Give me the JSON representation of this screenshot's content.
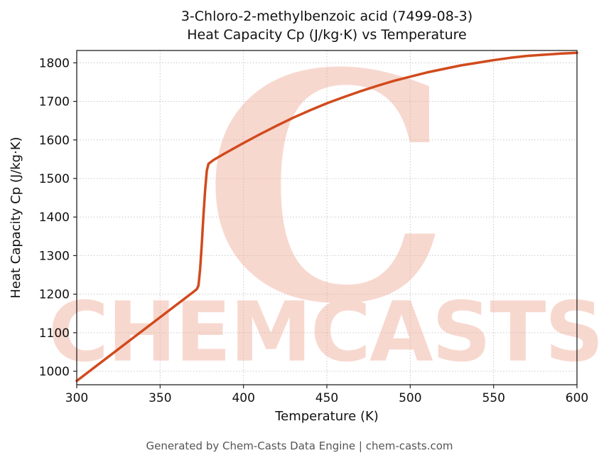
{
  "header": {
    "title_line1": "3-Chloro-2-methylbenzoic acid (7499-08-3)",
    "title_line2": "Heat Capacity Cp (J/kg·K) vs Temperature"
  },
  "footer": {
    "text": "Generated by Chem-Casts Data Engine | chem-casts.com"
  },
  "watermark": {
    "logo_text": "C",
    "brand_text": "CHEMCASTS",
    "color": "#efab97",
    "opacity": 0.45
  },
  "chart_data": {
    "type": "line",
    "title": "3-Chloro-2-methylbenzoic acid (7499-08-3) Heat Capacity Cp (J/kg·K) vs Temperature",
    "xlabel": "Temperature (K)",
    "ylabel": "Heat Capacity Cp (J/kg·K)",
    "xlim": [
      300,
      600
    ],
    "ylim": [
      965,
      1832
    ],
    "xticks": [
      300,
      350,
      400,
      450,
      500,
      550,
      600
    ],
    "yticks": [
      1000,
      1100,
      1200,
      1300,
      1400,
      1500,
      1600,
      1700,
      1800
    ],
    "grid": true,
    "grid_color": "#c8c8c8",
    "line_color": "#d14a1d",
    "line_width": 3.5,
    "series": [
      {
        "name": "Heat Capacity Cp",
        "x": [
          300,
          310,
          320,
          330,
          340,
          350,
          360,
          370,
          372,
          373,
          374,
          375,
          376,
          377,
          378,
          379,
          382,
          386,
          390,
          395,
          400,
          410,
          420,
          430,
          440,
          450,
          460,
          470,
          480,
          490,
          500,
          510,
          520,
          530,
          540,
          550,
          560,
          570,
          580,
          590,
          600
        ],
        "y": [
          975,
          1008,
          1041,
          1074,
          1107,
          1140,
          1173,
          1206,
          1213,
          1222,
          1265,
          1330,
          1405,
          1470,
          1520,
          1538,
          1548,
          1558,
          1568,
          1580,
          1592,
          1615,
          1637,
          1658,
          1677,
          1695,
          1711,
          1726,
          1740,
          1753,
          1764,
          1775,
          1784,
          1793,
          1800,
          1807,
          1813,
          1818,
          1821,
          1824,
          1826
        ]
      }
    ]
  }
}
